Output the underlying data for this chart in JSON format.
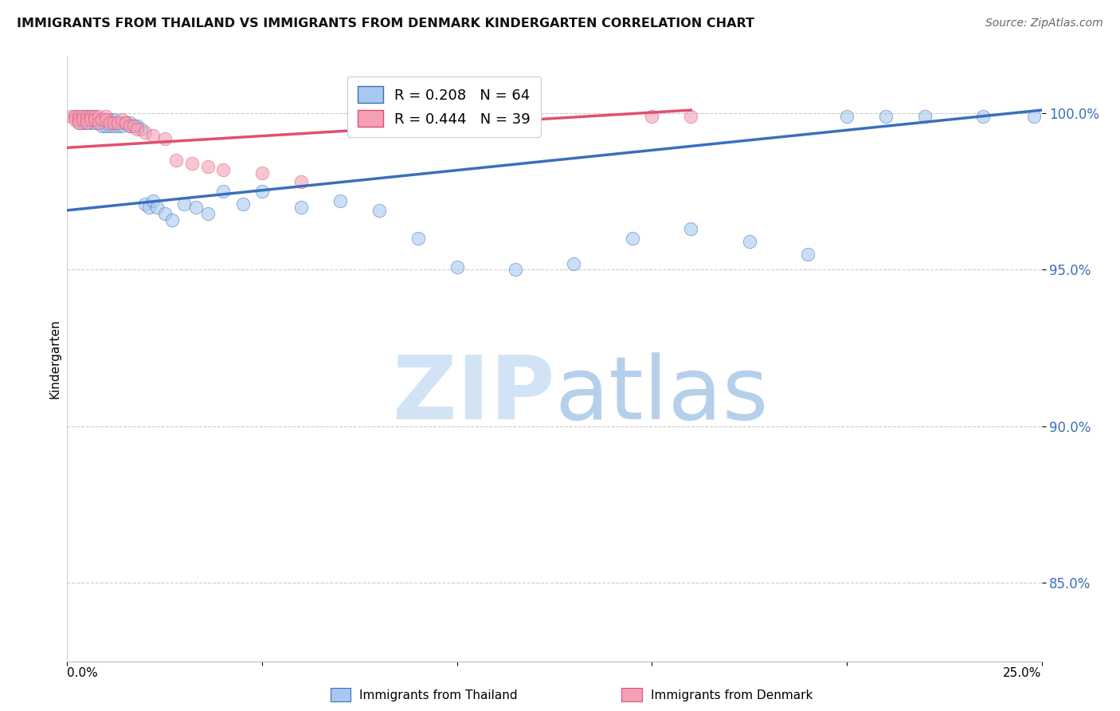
{
  "title": "IMMIGRANTS FROM THAILAND VS IMMIGRANTS FROM DENMARK KINDERGARTEN CORRELATION CHART",
  "source": "Source: ZipAtlas.com",
  "ylabel": "Kindergarten",
  "y_ticks": [
    0.85,
    0.9,
    0.95,
    1.0
  ],
  "y_tick_labels": [
    "85.0%",
    "90.0%",
    "95.0%",
    "100.0%"
  ],
  "xlim": [
    0.0,
    0.25
  ],
  "ylim": [
    0.825,
    1.018
  ],
  "legend1_label": "R = 0.208   N = 64",
  "legend2_label": "R = 0.444   N = 39",
  "legend1_color": "#a8c8f0",
  "legend2_color": "#f4a0b5",
  "line1_color": "#3b6fba",
  "line2_color": "#e05070",
  "scatter_blue_x": [
    0.002,
    0.003,
    0.003,
    0.004,
    0.004,
    0.004,
    0.005,
    0.005,
    0.005,
    0.006,
    0.006,
    0.006,
    0.007,
    0.007,
    0.007,
    0.008,
    0.008,
    0.009,
    0.009,
    0.01,
    0.01,
    0.01,
    0.011,
    0.011,
    0.012,
    0.012,
    0.013,
    0.013,
    0.014,
    0.014,
    0.015,
    0.016,
    0.016,
    0.017,
    0.018,
    0.019,
    0.02,
    0.021,
    0.022,
    0.023,
    0.025,
    0.027,
    0.03,
    0.033,
    0.036,
    0.04,
    0.045,
    0.05,
    0.06,
    0.07,
    0.08,
    0.09,
    0.1,
    0.115,
    0.13,
    0.145,
    0.16,
    0.175,
    0.19,
    0.2,
    0.21,
    0.22,
    0.235,
    0.248
  ],
  "scatter_blue_y": [
    0.999,
    0.998,
    0.997,
    0.999,
    0.998,
    0.997,
    0.999,
    0.998,
    0.997,
    0.999,
    0.998,
    0.997,
    0.999,
    0.998,
    0.997,
    0.998,
    0.997,
    0.998,
    0.996,
    0.998,
    0.997,
    0.996,
    0.998,
    0.996,
    0.998,
    0.996,
    0.997,
    0.996,
    0.997,
    0.996,
    0.997,
    0.997,
    0.996,
    0.996,
    0.996,
    0.995,
    0.971,
    0.97,
    0.972,
    0.97,
    0.968,
    0.966,
    0.971,
    0.97,
    0.968,
    0.975,
    0.971,
    0.975,
    0.97,
    0.972,
    0.969,
    0.96,
    0.951,
    0.95,
    0.952,
    0.96,
    0.963,
    0.959,
    0.955,
    0.999,
    0.999,
    0.999,
    0.999,
    0.999
  ],
  "scatter_pink_x": [
    0.001,
    0.002,
    0.002,
    0.003,
    0.003,
    0.003,
    0.004,
    0.004,
    0.005,
    0.005,
    0.005,
    0.006,
    0.006,
    0.007,
    0.007,
    0.008,
    0.008,
    0.009,
    0.01,
    0.01,
    0.011,
    0.012,
    0.013,
    0.014,
    0.015,
    0.016,
    0.017,
    0.018,
    0.02,
    0.022,
    0.025,
    0.028,
    0.032,
    0.036,
    0.04,
    0.05,
    0.06,
    0.15,
    0.16
  ],
  "scatter_pink_y": [
    0.999,
    0.999,
    0.998,
    0.999,
    0.998,
    0.997,
    0.999,
    0.998,
    0.999,
    0.998,
    0.997,
    0.999,
    0.998,
    0.999,
    0.998,
    0.999,
    0.997,
    0.998,
    0.999,
    0.998,
    0.997,
    0.997,
    0.997,
    0.998,
    0.997,
    0.996,
    0.996,
    0.995,
    0.994,
    0.993,
    0.992,
    0.985,
    0.984,
    0.983,
    0.982,
    0.981,
    0.978,
    0.999,
    0.999
  ],
  "line1_x": [
    0.0,
    0.25
  ],
  "line1_y": [
    0.969,
    1.001
  ],
  "line2_x": [
    0.0,
    0.16
  ],
  "line2_y": [
    0.989,
    1.001
  ]
}
